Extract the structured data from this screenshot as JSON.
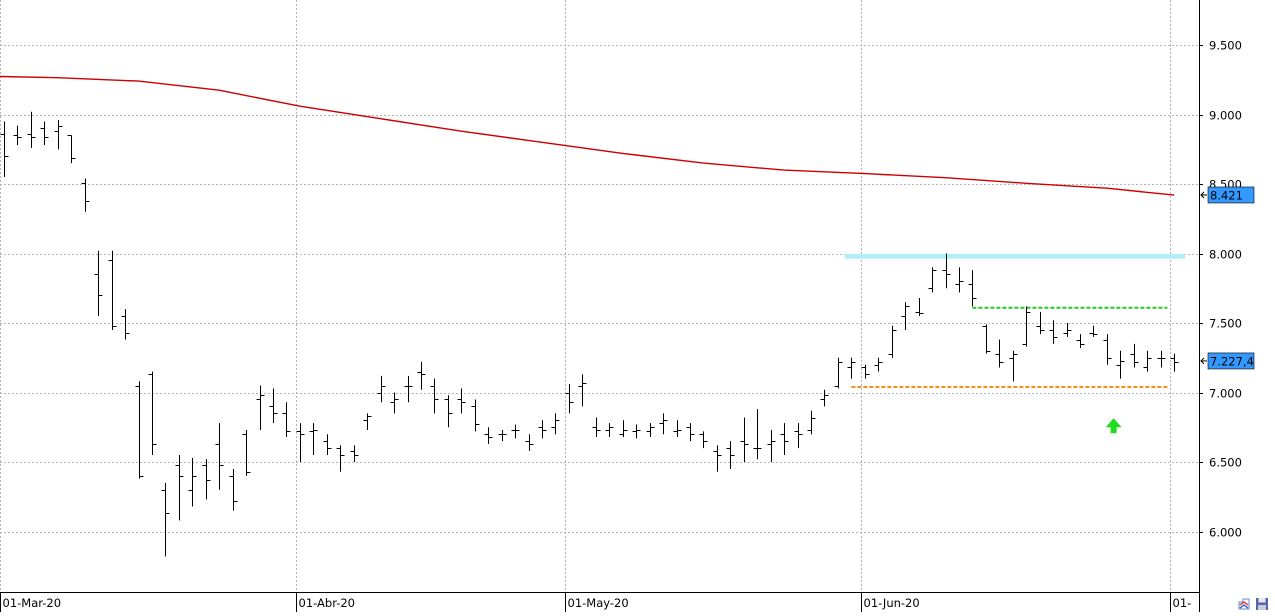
{
  "chart_data": {
    "type": "ohlc",
    "title": "",
    "xlabel": "",
    "ylabel": "",
    "ylim": [
      5.6,
      9.85
    ],
    "y_ticks": [
      "9.500",
      "9.000",
      "8.500",
      "8.000",
      "7.500",
      "7.000",
      "6.500",
      "6.000"
    ],
    "y_tick_values": [
      9.5,
      9.0,
      8.5,
      8.0,
      7.5,
      7.0,
      6.5,
      6.0
    ],
    "x_ticks": [
      "01-Mar-20",
      "01-Abr-20",
      "01-May-20",
      "01-Jun-20",
      "01-"
    ],
    "x_tick_indices": [
      0,
      22,
      42,
      64,
      87
    ],
    "grid": true,
    "colors": {
      "bars": "#000000",
      "moving_average": "#cc0000",
      "resistance": "#b3f0f5",
      "green_level": "#22cc22",
      "orange_level": "#ff8c1a",
      "last_price_label": "#3399ff",
      "arrow": "#1fdd1f"
    },
    "ohlc": [
      [
        8.86,
        8.95,
        8.55,
        8.7
      ],
      [
        8.85,
        8.92,
        8.78,
        8.84
      ],
      [
        8.86,
        9.02,
        8.76,
        8.84
      ],
      [
        8.9,
        8.95,
        8.78,
        8.84
      ],
      [
        8.88,
        8.96,
        8.75,
        8.92
      ],
      [
        8.85,
        8.85,
        8.65,
        8.69
      ],
      [
        8.51,
        8.54,
        8.3,
        8.38
      ],
      [
        7.85,
        8.02,
        7.55,
        7.7
      ],
      [
        7.95,
        8.02,
        7.45,
        7.48
      ],
      [
        7.55,
        7.6,
        7.38,
        7.43
      ],
      [
        7.05,
        7.08,
        6.38,
        6.4
      ],
      [
        7.13,
        7.15,
        6.55,
        6.63
      ],
      [
        6.3,
        6.35,
        5.82,
        6.13
      ],
      [
        6.48,
        6.55,
        6.08,
        6.4
      ],
      [
        6.3,
        6.53,
        6.18,
        6.4
      ],
      [
        6.48,
        6.52,
        6.23,
        6.37
      ],
      [
        6.63,
        6.78,
        6.3,
        6.48
      ],
      [
        6.4,
        6.45,
        6.15,
        6.22
      ],
      [
        6.7,
        6.73,
        6.4,
        6.43
      ],
      [
        6.95,
        7.05,
        6.73,
        6.98
      ],
      [
        6.9,
        7.03,
        6.78,
        6.85
      ],
      [
        6.85,
        6.93,
        6.68,
        6.72
      ],
      [
        6.72,
        6.78,
        6.5,
        6.7
      ],
      [
        6.72,
        6.78,
        6.55,
        6.73
      ],
      [
        6.65,
        6.7,
        6.55,
        6.6
      ],
      [
        6.6,
        6.62,
        6.43,
        6.55
      ],
      [
        6.58,
        6.62,
        6.5,
        6.55
      ],
      [
        6.8,
        6.85,
        6.73,
        6.83
      ],
      [
        7.0,
        7.12,
        6.93,
        7.05
      ],
      [
        6.93,
        7.0,
        6.85,
        6.95
      ],
      [
        7.05,
        7.12,
        6.93,
        7.05
      ],
      [
        7.15,
        7.22,
        7.02,
        7.13
      ],
      [
        7.05,
        7.1,
        6.85,
        6.95
      ],
      [
        6.95,
        6.98,
        6.75,
        6.85
      ],
      [
        6.95,
        7.03,
        6.85,
        6.93
      ],
      [
        6.9,
        6.95,
        6.72,
        6.77
      ],
      [
        6.7,
        6.75,
        6.63,
        6.68
      ],
      [
        6.7,
        6.73,
        6.65,
        6.7
      ],
      [
        6.73,
        6.77,
        6.67,
        6.73
      ],
      [
        6.65,
        6.7,
        6.58,
        6.63
      ],
      [
        6.75,
        6.8,
        6.67,
        6.73
      ],
      [
        6.75,
        6.85,
        6.7,
        6.8
      ],
      [
        7.0,
        7.06,
        6.85,
        6.93
      ],
      [
        7.05,
        7.13,
        6.9,
        7.07
      ],
      [
        6.75,
        6.82,
        6.68,
        6.73
      ],
      [
        6.73,
        6.78,
        6.68,
        6.75
      ],
      [
        6.7,
        6.8,
        6.68,
        6.73
      ],
      [
        6.72,
        6.77,
        6.67,
        6.73
      ],
      [
        6.72,
        6.78,
        6.68,
        6.75
      ],
      [
        6.78,
        6.85,
        6.7,
        6.8
      ],
      [
        6.72,
        6.8,
        6.68,
        6.73
      ],
      [
        6.75,
        6.78,
        6.65,
        6.7
      ],
      [
        6.7,
        6.72,
        6.6,
        6.65
      ],
      [
        6.58,
        6.62,
        6.43,
        6.55
      ],
      [
        6.6,
        6.65,
        6.45,
        6.55
      ],
      [
        6.65,
        6.82,
        6.5,
        6.63
      ],
      [
        6.6,
        6.88,
        6.52,
        6.6
      ],
      [
        6.63,
        6.73,
        6.5,
        6.65
      ],
      [
        6.7,
        6.78,
        6.55,
        6.65
      ],
      [
        6.72,
        6.78,
        6.6,
        6.7
      ],
      [
        6.73,
        6.87,
        6.7,
        6.82
      ],
      [
        6.95,
        7.02,
        6.9,
        6.98
      ],
      [
        7.05,
        7.25,
        7.03,
        7.22
      ],
      [
        7.18,
        7.25,
        7.1,
        7.22
      ],
      [
        7.18,
        7.2,
        7.1,
        7.13
      ],
      [
        7.2,
        7.25,
        7.15,
        7.22
      ],
      [
        7.28,
        7.48,
        7.25,
        7.45
      ],
      [
        7.55,
        7.65,
        7.45,
        7.62
      ],
      [
        7.58,
        7.68,
        7.55,
        7.57
      ],
      [
        7.75,
        7.9,
        7.72,
        7.88
      ],
      [
        7.88,
        8.0,
        7.75,
        7.85
      ],
      [
        7.78,
        7.9,
        7.72,
        7.8
      ],
      [
        7.78,
        7.88,
        7.62,
        7.68
      ],
      [
        7.48,
        7.49,
        7.28,
        7.3
      ],
      [
        7.28,
        7.38,
        7.18,
        7.22
      ],
      [
        7.25,
        7.3,
        7.08,
        7.28
      ],
      [
        7.35,
        7.62,
        7.33,
        7.58
      ],
      [
        7.48,
        7.58,
        7.42,
        7.45
      ],
      [
        7.45,
        7.52,
        7.35,
        7.4
      ],
      [
        7.43,
        7.5,
        7.4,
        7.45
      ],
      [
        7.38,
        7.42,
        7.32,
        7.35
      ],
      [
        7.43,
        7.48,
        7.4,
        7.42
      ],
      [
        7.38,
        7.42,
        7.2,
        7.25
      ],
      [
        7.2,
        7.3,
        7.1,
        7.23
      ],
      [
        7.28,
        7.35,
        7.18,
        7.22
      ],
      [
        7.18,
        7.3,
        7.15,
        7.25
      ],
      [
        7.25,
        7.3,
        7.18,
        7.25
      ],
      [
        7.25,
        7.28,
        7.15,
        7.22
      ]
    ],
    "moving_average": {
      "points": [
        [
          -1,
          9.275
        ],
        [
          4,
          9.265
        ],
        [
          10,
          9.24
        ],
        [
          16,
          9.175
        ],
        [
          22,
          9.06
        ],
        [
          28,
          8.97
        ],
        [
          34,
          8.88
        ],
        [
          40,
          8.8
        ],
        [
          46,
          8.72
        ],
        [
          52,
          8.65
        ],
        [
          58,
          8.6
        ],
        [
          64,
          8.575
        ],
        [
          70,
          8.545
        ],
        [
          76,
          8.505
        ],
        [
          82,
          8.47
        ],
        [
          87,
          8.42
        ]
      ]
    },
    "levels": [
      {
        "name": "resistance-band",
        "y": 7.98,
        "x_start": 62.5,
        "x_end": 88,
        "style": "band"
      },
      {
        "name": "green-level",
        "y": 7.61,
        "x_start": 72,
        "x_end": 86.5,
        "style": "dashed"
      },
      {
        "name": "orange-level",
        "y": 7.04,
        "x_start": 63,
        "x_end": 86.5,
        "style": "dashed"
      }
    ],
    "price_labels": [
      {
        "name": "moving-average-value",
        "text": "8.421",
        "value": 8.421
      },
      {
        "name": "last-price",
        "text": "7.227,4",
        "value": 7.227
      }
    ],
    "arrow": {
      "index": 82.5,
      "value": 6.75,
      "direction": "up"
    }
  }
}
